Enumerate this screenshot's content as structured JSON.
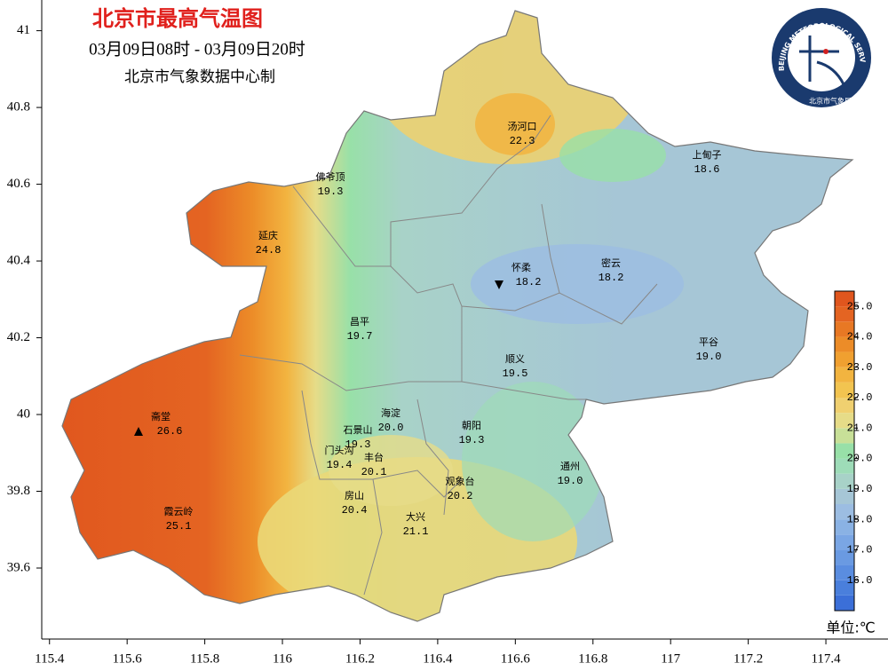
{
  "header": {
    "title": "北京市最高气温图",
    "period": "03月09日08时 - 03月09日20时",
    "producer": "北京市气象数据中心制"
  },
  "logo": {
    "text": "BEIJING METEOROLOGICAL SERVICE",
    "subtext": "北京市气象局"
  },
  "axes": {
    "xlim": [
      115.38,
      117.56
    ],
    "ylim": [
      39.415,
      41.08
    ],
    "xticks": [
      115.4,
      115.6,
      115.8,
      116,
      116.2,
      116.4,
      116.6,
      116.8,
      117,
      117.2,
      117.4
    ],
    "yticks": [
      39.6,
      39.8,
      40,
      40.2,
      40.4,
      40.6,
      40.8,
      41
    ]
  },
  "stations": {
    "names": [
      "汤河口",
      "上甸子",
      "佛爷顶",
      "延庆",
      "怀柔",
      "密云",
      "昌平",
      "平谷",
      "顺义",
      "海淀",
      "斋堂",
      "石景山",
      "朝阳",
      "门头沟",
      "丰台",
      "通州",
      "观象台",
      "房山",
      "霞云岭",
      "大兴"
    ],
    "values": [
      22.3,
      18.6,
      19.3,
      24.8,
      18.2,
      18.2,
      19.7,
      19.0,
      19.5,
      20.0,
      26.6,
      19.3,
      19.3,
      19.4,
      20.1,
      19.0,
      20.2,
      20.4,
      25.1,
      21.1
    ],
    "value_labels": [
      "22.3",
      "18.6",
      "19.3",
      "24.8",
      "18.2",
      "18.2",
      "19.7",
      "19.0",
      "19.5",
      "20.0",
      "26.6",
      "19.3",
      "19.3",
      "19.4",
      "20.1",
      "19.0",
      "20.2",
      "20.4",
      "25.1",
      "21.1"
    ]
  },
  "colorbar": {
    "range": [
      15,
      25.5
    ],
    "step": 0.5,
    "colors": [
      "#3b6fd8",
      "#4a7fdc",
      "#5a8de0",
      "#6a9ae2",
      "#7aa6e4",
      "#8ab2e4",
      "#9cbde2",
      "#a6c6d6",
      "#a8d2c8",
      "#9edcb8",
      "#98e0a8",
      "#c8e098",
      "#e6dc88",
      "#f0d070",
      "#f2c450",
      "#f2b440",
      "#f0a030",
      "#ec8c28",
      "#e87824",
      "#e46422",
      "#e0561e"
    ],
    "ticks": [
      {
        "value": 16,
        "label": "16.0"
      },
      {
        "value": 17,
        "label": "17.0"
      },
      {
        "value": 18,
        "label": "18.0"
      },
      {
        "value": 19,
        "label": "19.0"
      },
      {
        "value": 20,
        "label": "20.0"
      },
      {
        "value": 21,
        "label": "21.0"
      },
      {
        "value": 22,
        "label": "22.0"
      },
      {
        "value": 23,
        "label": "23.0"
      },
      {
        "value": 24,
        "label": "24.0"
      },
      {
        "value": 25,
        "label": "25.0"
      }
    ],
    "unit": "单位:℃"
  }
}
